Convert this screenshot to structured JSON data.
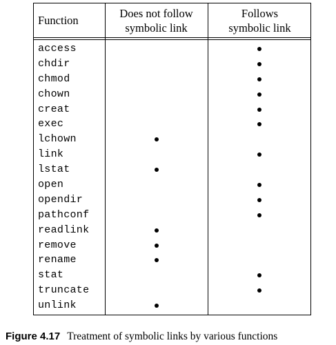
{
  "table": {
    "headers": {
      "function": "Function",
      "nofollow": [
        "Does not follow",
        "symbolic link"
      ],
      "follow": [
        "Follows",
        "symbolic link"
      ]
    },
    "rows": [
      {
        "name": "access",
        "nofollow": false,
        "follow": true
      },
      {
        "name": "chdir",
        "nofollow": false,
        "follow": true
      },
      {
        "name": "chmod",
        "nofollow": false,
        "follow": true
      },
      {
        "name": "chown",
        "nofollow": false,
        "follow": true
      },
      {
        "name": "creat",
        "nofollow": false,
        "follow": true
      },
      {
        "name": "exec",
        "nofollow": false,
        "follow": true
      },
      {
        "name": "lchown",
        "nofollow": true,
        "follow": false
      },
      {
        "name": "link",
        "nofollow": false,
        "follow": true
      },
      {
        "name": "lstat",
        "nofollow": true,
        "follow": false
      },
      {
        "name": "open",
        "nofollow": false,
        "follow": true
      },
      {
        "name": "opendir",
        "nofollow": false,
        "follow": true
      },
      {
        "name": "pathconf",
        "nofollow": false,
        "follow": true
      },
      {
        "name": "readlink",
        "nofollow": true,
        "follow": false
      },
      {
        "name": "remove",
        "nofollow": true,
        "follow": false
      },
      {
        "name": "rename",
        "nofollow": true,
        "follow": false
      },
      {
        "name": "stat",
        "nofollow": false,
        "follow": true
      },
      {
        "name": "truncate",
        "nofollow": false,
        "follow": true
      },
      {
        "name": "unlink",
        "nofollow": true,
        "follow": false
      }
    ]
  },
  "caption": {
    "label": "Figure 4.17",
    "text": "Treatment of symbolic links by various functions"
  }
}
